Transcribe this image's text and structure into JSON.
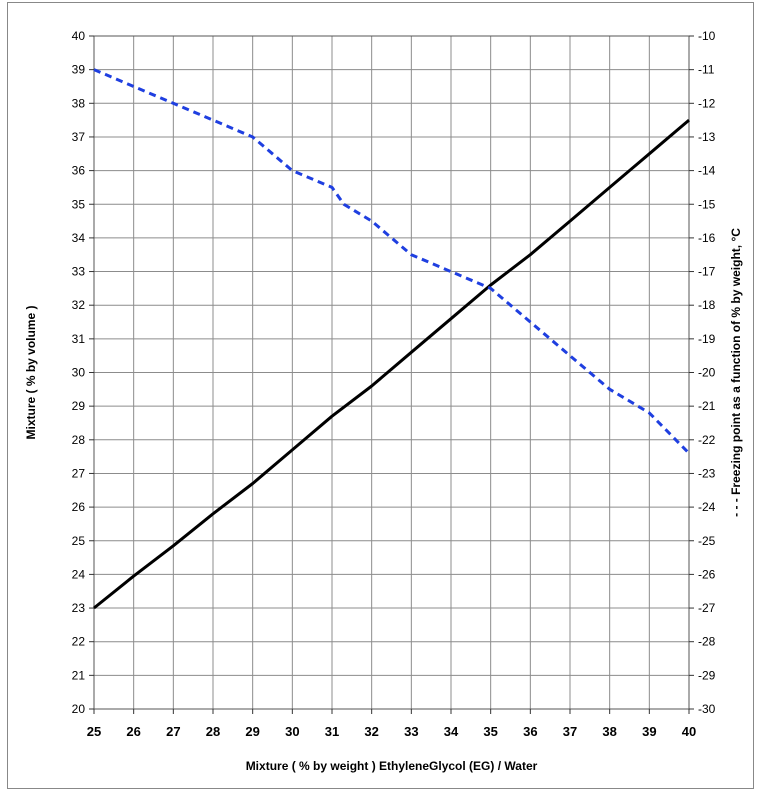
{
  "chart_data": {
    "type": "line",
    "xlabel": "Mixture ( % by weight ) EthyleneGlycol (EG) / Water",
    "ylabel_left": "Mixture ( % by volume )",
    "ylabel_right": "- - - Freezing point as a function of % by weight, °C",
    "x_ticks": [
      25,
      26,
      27,
      28,
      29,
      30,
      31,
      32,
      33,
      34,
      35,
      36,
      37,
      38,
      39,
      40
    ],
    "y_left_ticks": [
      20,
      21,
      22,
      23,
      24,
      25,
      26,
      27,
      28,
      29,
      30,
      31,
      32,
      33,
      34,
      35,
      36,
      37,
      38,
      39,
      40
    ],
    "y_right_ticks": [
      -30,
      -29,
      -28,
      -27,
      -26,
      -25,
      -24,
      -23,
      -22,
      -21,
      -20,
      -19,
      -18,
      -17,
      -16,
      -15,
      -14,
      -13,
      -12,
      -11,
      -10
    ],
    "xlim": [
      25,
      40
    ],
    "ylim_left": [
      20,
      40
    ],
    "ylim_right": [
      -30,
      -10
    ],
    "grid": true,
    "series": [
      {
        "axis": "left",
        "style": "solid",
        "color": "#000000",
        "x": [
          25,
          26,
          27,
          28,
          29,
          30,
          31,
          32,
          33,
          34,
          35,
          36,
          37,
          38,
          39,
          40
        ],
        "y": [
          23.0,
          23.95,
          24.85,
          25.8,
          26.7,
          27.7,
          28.7,
          29.6,
          30.6,
          31.6,
          32.6,
          33.5,
          34.5,
          35.5,
          36.5,
          37.5
        ]
      },
      {
        "axis": "right",
        "style": "dashed",
        "color": "#1f3fe0",
        "x": [
          25,
          26,
          27,
          28,
          29,
          30,
          31,
          31.3,
          32,
          33,
          34,
          35,
          35.5,
          36,
          37,
          38,
          39,
          40
        ],
        "y": [
          -11.0,
          -11.5,
          -12.0,
          -12.5,
          -13.0,
          -14.0,
          -14.5,
          -15.0,
          -15.5,
          -16.5,
          -17.0,
          -17.5,
          -18.0,
          -18.5,
          -19.5,
          -20.5,
          -21.2,
          -22.4
        ]
      }
    ]
  }
}
